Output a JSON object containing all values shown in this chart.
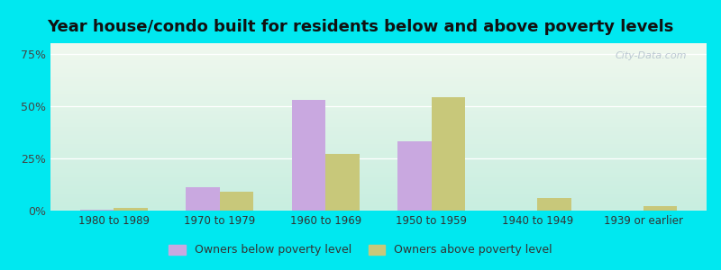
{
  "title": "Year house/condo built for residents below and above poverty levels",
  "categories": [
    "1980 to 1989",
    "1970 to 1979",
    "1960 to 1969",
    "1950 to 1959",
    "1940 to 1949",
    "1939 or earlier"
  ],
  "below_poverty": [
    0.5,
    11.0,
    53.0,
    33.0,
    0.0,
    0.0
  ],
  "above_poverty": [
    1.5,
    9.0,
    27.0,
    54.0,
    6.0,
    2.0
  ],
  "color_below": "#c9a8e0",
  "color_above": "#c8c87a",
  "bg_color_top": "#f0f8ee",
  "bg_color_bottom": "#c8eee0",
  "outer_bg": "#00e8f0",
  "ylabel_ticks": [
    "0%",
    "25%",
    "50%",
    "75%"
  ],
  "yticks": [
    0,
    25,
    50,
    75
  ],
  "ylim": [
    0,
    80
  ],
  "legend_below": "Owners below poverty level",
  "legend_above": "Owners above poverty level",
  "title_fontsize": 13,
  "bar_width": 0.32
}
